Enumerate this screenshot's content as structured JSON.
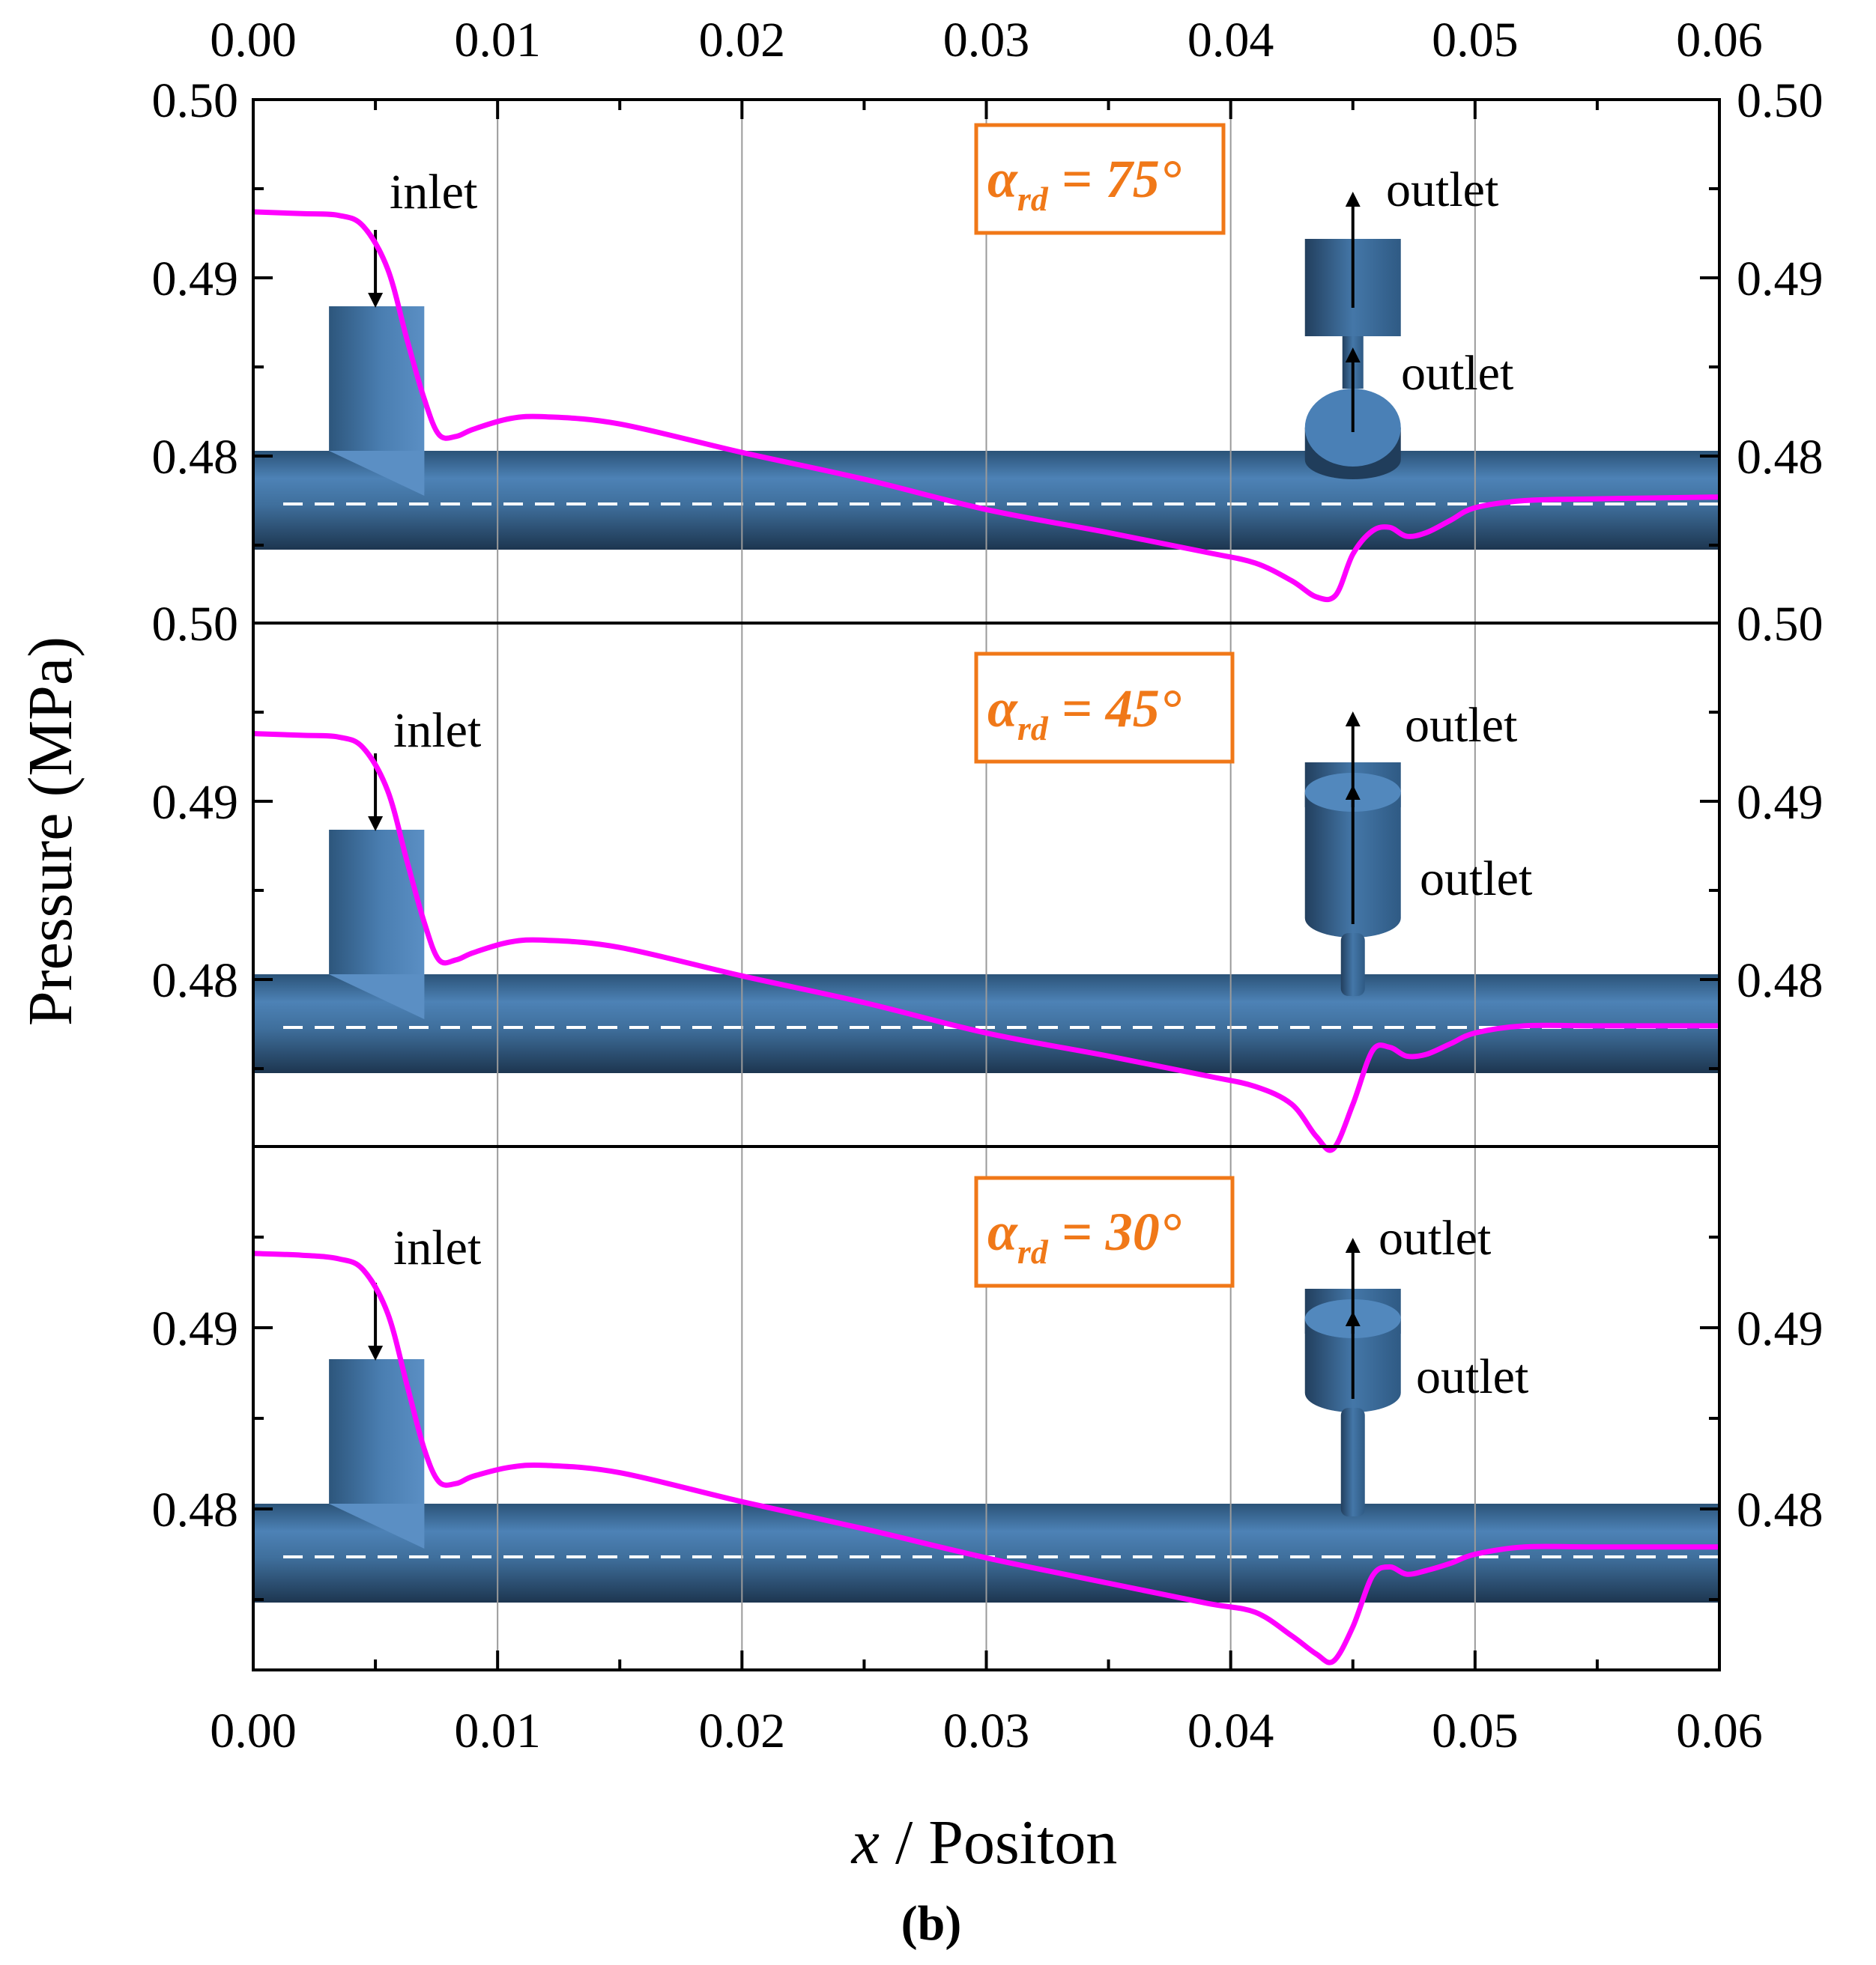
{
  "chart_data": {
    "type": "line",
    "xlabel_var": "x",
    "xlabel_text": " / Positon",
    "ylabel": "Pressure (MPa)",
    "caption": "(b)",
    "xlim": [
      0.0,
      0.06
    ],
    "x_ticks": [
      "0.00",
      "0.01",
      "0.02",
      "0.03",
      "0.04",
      "0.05",
      "0.06"
    ],
    "grid": "vertical",
    "panels": [
      {
        "id": "p75",
        "angle_symbol": "α",
        "angle_sub": "rd",
        "angle_value": " = 75°",
        "ylim": [
          0.4705,
          0.5
        ],
        "y_ticks": [
          "0.50",
          "0.49",
          "0.48"
        ],
        "inlet_label": "inlet",
        "outlet_top_label": "outlet",
        "outlet_side_label": "outlet",
        "series": [
          {
            "name": "pressure",
            "color": "#ff00ff",
            "x": [
              0.0,
              0.002,
              0.0035,
              0.0045,
              0.0055,
              0.0063,
              0.007,
              0.0076,
              0.0083,
              0.009,
              0.0105,
              0.012,
              0.015,
              0.02,
              0.025,
              0.03,
              0.035,
              0.039,
              0.041,
              0.0425,
              0.0435,
              0.0443,
              0.045,
              0.0458,
              0.0465,
              0.0472,
              0.048,
              0.049,
              0.05,
              0.052,
              0.055,
              0.06
            ],
            "y": [
              0.4937,
              0.4936,
              0.4935,
              0.4929,
              0.4905,
              0.4865,
              0.4832,
              0.4812,
              0.4811,
              0.4815,
              0.4821,
              0.4822,
              0.4818,
              0.4802,
              0.4787,
              0.477,
              0.4757,
              0.4746,
              0.474,
              0.473,
              0.4721,
              0.4722,
              0.4745,
              0.4758,
              0.476,
              0.4755,
              0.4757,
              0.4764,
              0.4771,
              0.4775,
              0.4776,
              0.4777
            ]
          }
        ]
      },
      {
        "id": "p45",
        "angle_symbol": "α",
        "angle_sub": "rd",
        "angle_value": " = 45°",
        "ylim": [
          0.4705,
          0.5
        ],
        "y_ticks": [
          "0.50",
          "0.49",
          "0.48"
        ],
        "inlet_label": "inlet",
        "outlet_top_label": "outlet",
        "outlet_side_label": "outlet",
        "series": [
          {
            "name": "pressure",
            "color": "#ff00ff",
            "x": [
              0.0,
              0.002,
              0.0035,
              0.0045,
              0.0055,
              0.0063,
              0.007,
              0.0076,
              0.0083,
              0.009,
              0.0105,
              0.012,
              0.015,
              0.02,
              0.025,
              0.03,
              0.035,
              0.039,
              0.041,
              0.0425,
              0.0435,
              0.0442,
              0.045,
              0.0458,
              0.0465,
              0.0472,
              0.048,
              0.049,
              0.05,
              0.052,
              0.055,
              0.06
            ],
            "y": [
              0.4938,
              0.4937,
              0.4936,
              0.493,
              0.4906,
              0.4866,
              0.4832,
              0.4811,
              0.4811,
              0.4815,
              0.4821,
              0.4822,
              0.4818,
              0.4802,
              0.4787,
              0.477,
              0.4757,
              0.4746,
              0.474,
              0.473,
              0.4712,
              0.4705,
              0.473,
              0.476,
              0.4762,
              0.4757,
              0.4758,
              0.4764,
              0.477,
              0.4774,
              0.4774,
              0.4774
            ]
          }
        ]
      },
      {
        "id": "p30",
        "angle_symbol": "α",
        "angle_sub": "rd",
        "angle_value": " = 30°",
        "ylim": [
          0.4705,
          0.5
        ],
        "y_ticks": [
          "0.49",
          "0.48"
        ],
        "inlet_label": "inlet",
        "outlet_top_label": "outlet",
        "outlet_side_label": "outlet",
        "series": [
          {
            "name": "pressure",
            "color": "#ff00ff",
            "x": [
              0.0,
              0.002,
              0.0035,
              0.0045,
              0.0055,
              0.0063,
              0.007,
              0.0076,
              0.0083,
              0.009,
              0.0105,
              0.012,
              0.015,
              0.02,
              0.025,
              0.03,
              0.035,
              0.039,
              0.041,
              0.0425,
              0.0435,
              0.0442,
              0.045,
              0.0458,
              0.0465,
              0.0472,
              0.048,
              0.049,
              0.05,
              0.052,
              0.055,
              0.06
            ],
            "y": [
              0.4941,
              0.494,
              0.4938,
              0.4932,
              0.4908,
              0.4868,
              0.4833,
              0.4815,
              0.4814,
              0.4818,
              0.4823,
              0.4824,
              0.482,
              0.4804,
              0.4789,
              0.4773,
              0.4759,
              0.4748,
              0.4743,
              0.473,
              0.472,
              0.4716,
              0.4735,
              0.4763,
              0.4768,
              0.4764,
              0.4766,
              0.477,
              0.4775,
              0.4779,
              0.4779,
              0.4779
            ]
          }
        ]
      }
    ]
  },
  "colors": {
    "curve": "#ff00ff",
    "annotation": "#f07818",
    "pipe_light": "#5b8fc4",
    "pipe_dark": "#1f3b59",
    "grid": "#9a9a9a"
  }
}
